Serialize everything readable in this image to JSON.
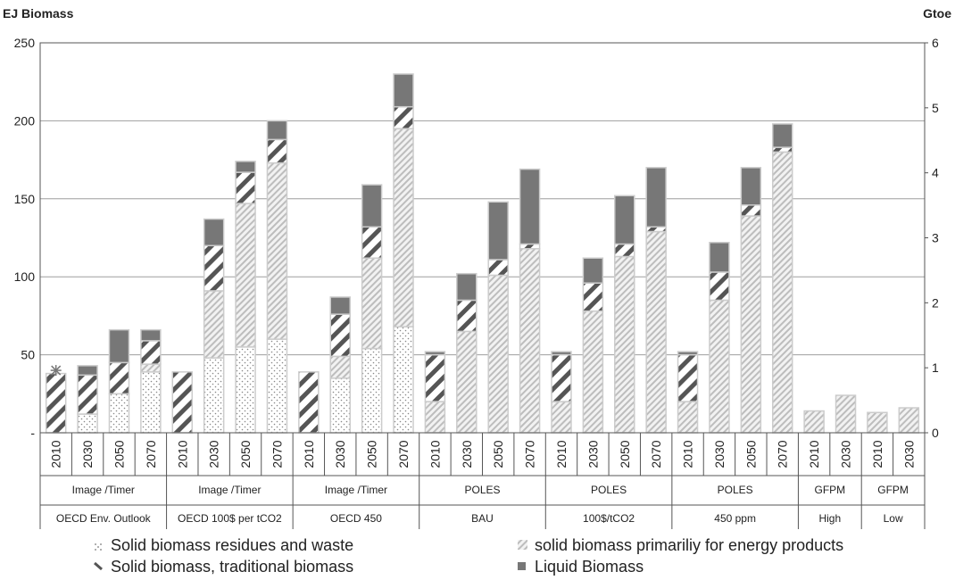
{
  "chart_data": {
    "type": "bar",
    "stacked": true,
    "ylabel_left": "EJ Biomass",
    "ylabel_right": "Gtoe",
    "ylim_left": [
      0,
      250
    ],
    "ylim_right": [
      0,
      6
    ],
    "left_ticks": [
      "-",
      "50",
      "100",
      "150",
      "200",
      "250"
    ],
    "right_ticks": [
      "0",
      "1",
      "2",
      "3",
      "4",
      "5",
      "6"
    ],
    "grid": true,
    "legend_position": "bottom",
    "categories": [
      "2010",
      "2030",
      "2050",
      "2070",
      "2010",
      "2030",
      "2050",
      "2070",
      "2010",
      "2030",
      "2050",
      "2070",
      "2010",
      "2030",
      "2050",
      "2070",
      "2010",
      "2030",
      "2050",
      "2070",
      "2010",
      "2030",
      "2050",
      "2070",
      "2010",
      "2030",
      "2010",
      "2030"
    ],
    "groups": [
      {
        "model": "Image /Timer",
        "scenario": "OECD Env. Outlook",
        "count": 4
      },
      {
        "model": "Image /Timer",
        "scenario": "OECD 100$ per tCO2",
        "count": 4
      },
      {
        "model": "Image /Timer",
        "scenario": "OECD 450",
        "count": 4
      },
      {
        "model": "POLES",
        "scenario": "BAU",
        "count": 4
      },
      {
        "model": "POLES",
        "scenario": "100$/tCO2",
        "count": 4
      },
      {
        "model": "POLES",
        "scenario": "450 ppm",
        "count": 4
      },
      {
        "model": "GFPM",
        "scenario": "High",
        "count": 2
      },
      {
        "model": "GFPM",
        "scenario": "Low",
        "count": 2
      }
    ],
    "series": [
      {
        "name": "Solid biomass residues and waste",
        "pattern": "dots",
        "values": [
          0,
          12,
          25,
          39,
          0,
          48,
          55,
          60,
          0,
          35,
          54,
          68,
          0,
          0,
          0,
          0,
          0,
          0,
          0,
          0,
          0,
          0,
          0,
          0,
          0,
          0,
          0,
          0
        ]
      },
      {
        "name": "solid biomass primariliy for energy products",
        "pattern": "light-hatch",
        "values": [
          0,
          0,
          0,
          5,
          0,
          43,
          92,
          113,
          0,
          14,
          58,
          127,
          20,
          65,
          101,
          118,
          20,
          78,
          113,
          129,
          20,
          85,
          139,
          180,
          14,
          24,
          13,
          16
        ]
      },
      {
        "name": "Solid biomass, traditional biomass",
        "pattern": "heavy-hatch",
        "values": [
          38,
          25,
          20,
          15,
          39,
          29,
          20,
          15,
          39,
          27,
          20,
          14,
          30,
          20,
          10,
          3,
          30,
          18,
          8,
          3,
          30,
          18,
          7,
          3,
          0,
          0,
          0,
          0
        ]
      },
      {
        "name": "Liquid Biomass",
        "pattern": "solid",
        "values": [
          0,
          6,
          21,
          7,
          0,
          17,
          7,
          12,
          0,
          11,
          27,
          21,
          2,
          17,
          37,
          48,
          2,
          16,
          31,
          38,
          2,
          19,
          24,
          15,
          0,
          0,
          0,
          0
        ]
      }
    ],
    "markers": [
      {
        "index": 0,
        "value": 40,
        "symbol": "star"
      }
    ],
    "legend_order": [
      0,
      1,
      2,
      3
    ]
  },
  "colors": {
    "dark": "#777777",
    "hatch_light": "#bdbdbd",
    "hatch_dark": "#555555",
    "dots": "#888888",
    "grid": "#9e9e9e",
    "bar_border": "#cccccc"
  }
}
